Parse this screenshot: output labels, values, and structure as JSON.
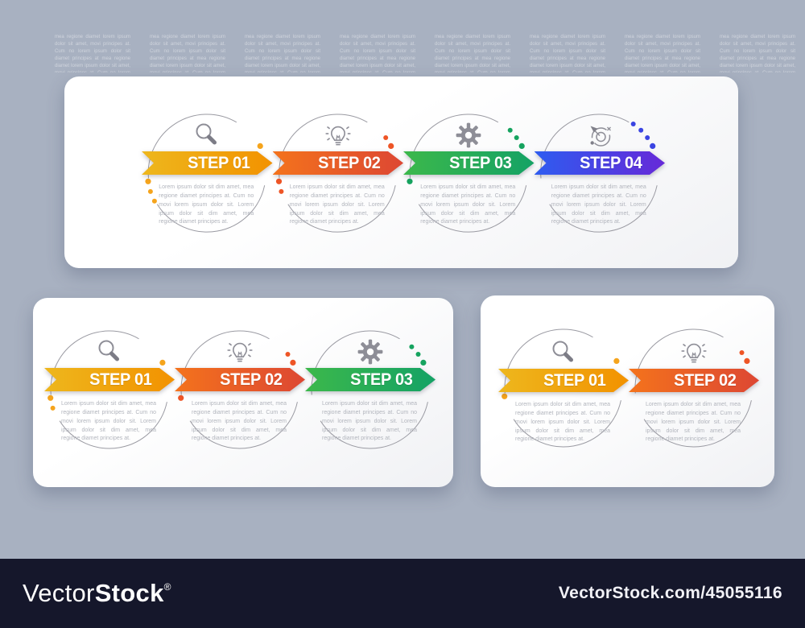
{
  "background_color": "#a8b1c1",
  "watermark": {
    "tile_text": "mea regione diamet lorem ipsum dolor sit amet, movi principes at. Cum no lorem ipsum dolor sit diamet principes at",
    "bar": {
      "brand_vector": "Vector",
      "brand_stock": "Stock",
      "registered": "®",
      "url": "VectorStock.com/45055116",
      "bar_color": "#15172b"
    }
  },
  "infographic": {
    "body_text": "Lorem ipsum dolor sit dim amet, mea regione diamet principes at. Cum no movi lorem ipsum dolor sit. Lorem ipsum dolor sit dim amet, mea regione diamet principes at.",
    "panels": [
      {
        "name": "four-step",
        "steps": [
          {
            "label": "STEP 01",
            "icon": "magnifier-icon",
            "gradient": [
              "#eeb71d",
              "#f29200"
            ],
            "dot_color": "#f5a41c"
          },
          {
            "label": "STEP 02",
            "icon": "lightbulb-icon",
            "gradient": [
              "#f4731c",
              "#dd4733"
            ],
            "dot_color": "#ee5526"
          },
          {
            "label": "STEP 03",
            "icon": "gear-icon",
            "gradient": [
              "#3cb84b",
              "#14a265"
            ],
            "dot_color": "#16a35f"
          },
          {
            "label": "STEP 04",
            "icon": "target-arrow-icon",
            "gradient": [
              "#2e5cf0",
              "#6629d8"
            ],
            "dot_color": "#3a44e2"
          }
        ]
      },
      {
        "name": "three-step",
        "steps": [
          {
            "label": "STEP 01",
            "icon": "magnifier-icon",
            "gradient": [
              "#eeb71d",
              "#f29200"
            ],
            "dot_color": "#f5a41c"
          },
          {
            "label": "STEP 02",
            "icon": "lightbulb-icon",
            "gradient": [
              "#f4731c",
              "#dd4733"
            ],
            "dot_color": "#ee5526"
          },
          {
            "label": "STEP 03",
            "icon": "gear-icon",
            "gradient": [
              "#3cb84b",
              "#14a265"
            ],
            "dot_color": "#16a35f"
          }
        ]
      },
      {
        "name": "two-step",
        "steps": [
          {
            "label": "STEP 01",
            "icon": "magnifier-icon",
            "gradient": [
              "#eeb71d",
              "#f29200"
            ],
            "dot_color": "#f5a41c"
          },
          {
            "label": "STEP 02",
            "icon": "lightbulb-icon",
            "gradient": [
              "#f4731c",
              "#dd4733"
            ],
            "dot_color": "#ee5526"
          }
        ]
      }
    ]
  }
}
